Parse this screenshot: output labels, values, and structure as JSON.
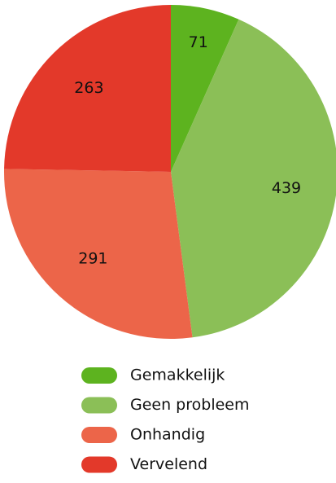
{
  "chart_data": {
    "type": "pie",
    "categories": [
      "Gemakkelijk",
      "Geen probleem",
      "Onhandig",
      "Vervelend"
    ],
    "values": [
      71,
      439,
      291,
      263
    ],
    "colors": [
      "#5db31f",
      "#8bbf57",
      "#ec6549",
      "#e3392a"
    ],
    "legend": "bottom"
  }
}
